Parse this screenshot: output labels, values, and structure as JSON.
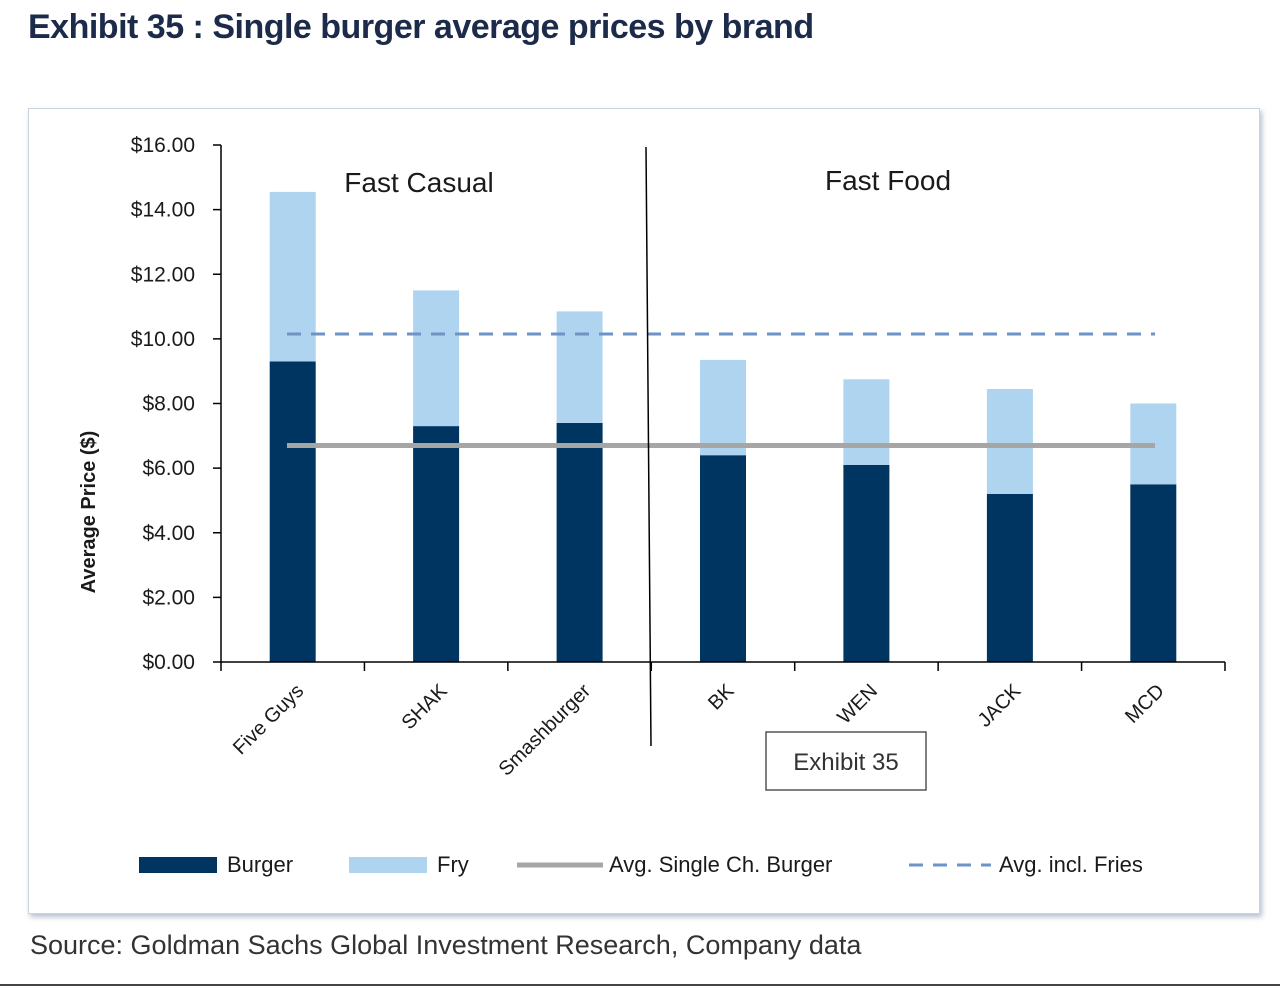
{
  "header": {
    "title": "Exhibit 35 : Single burger average prices by brand"
  },
  "footer": {
    "source": "Source: Goldman Sachs Global Investment Research, Company data"
  },
  "colors": {
    "burger": "#003561",
    "fry": "#aed4ef",
    "avg_burger": "#a6a6a6",
    "avg_fries": "#6d93c7",
    "axis": "#000000"
  },
  "chart_data": {
    "type": "bar",
    "stacked": true,
    "title": "",
    "xlabel": "",
    "ylabel": "Average Price ($)",
    "ylim": [
      0,
      16
    ],
    "yticks": [
      "$0.00",
      "$2.00",
      "$4.00",
      "$6.00",
      "$8.00",
      "$10.00",
      "$12.00",
      "$14.00",
      "$16.00"
    ],
    "categories": [
      "Five Guys",
      "SHAK",
      "Smashburger",
      "BK",
      "WEN",
      "JACK",
      "MCD"
    ],
    "series": [
      {
        "name": "Burger",
        "values": [
          9.3,
          7.3,
          7.4,
          6.4,
          6.1,
          5.2,
          5.5
        ]
      },
      {
        "name": "Fry",
        "values": [
          5.25,
          4.2,
          3.45,
          2.95,
          2.65,
          3.25,
          2.5
        ]
      }
    ],
    "reference_lines": [
      {
        "name": "Avg. Single Ch. Burger",
        "value": 6.7,
        "style": "solid"
      },
      {
        "name": "Avg. incl. Fries",
        "value": 10.15,
        "style": "dashed"
      }
    ],
    "groups": [
      {
        "label": "Fast Casual",
        "categories": [
          "Five Guys",
          "SHAK",
          "Smashburger"
        ]
      },
      {
        "label": "Fast Food",
        "categories": [
          "BK",
          "WEN",
          "JACK",
          "MCD"
        ]
      }
    ],
    "legend": {
      "position": "bottom",
      "items": [
        "Burger",
        "Fry",
        "Avg. Single Ch. Burger",
        "Avg. incl. Fries"
      ]
    },
    "annotations": [
      "Exhibit 35"
    ]
  }
}
